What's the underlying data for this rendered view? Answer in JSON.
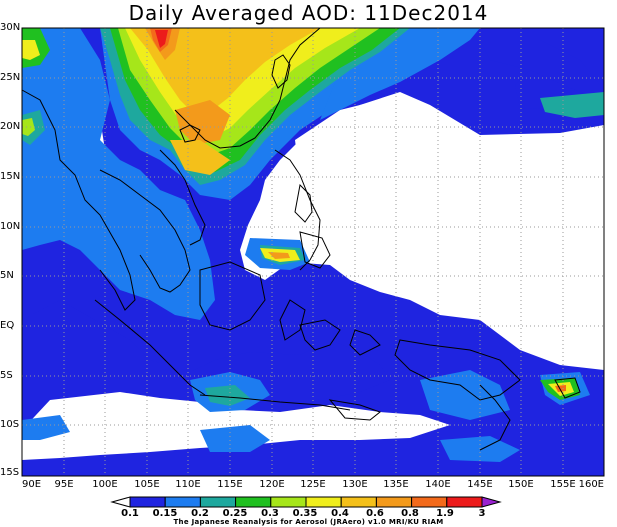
{
  "title": "Daily Averaged AOD: 11Dec2014",
  "lat_labels": [
    "30N",
    "25N",
    "20N",
    "15N",
    "10N",
    "5N",
    "EQ",
    "5S",
    "10S",
    "15S"
  ],
  "lon_labels": [
    "90E",
    "95E",
    "100E",
    "105E",
    "110E",
    "115E",
    "120E",
    "125E",
    "130E",
    "135E",
    "140E",
    "145E",
    "150E",
    "155E",
    "160E"
  ],
  "extent": {
    "lon": [
      90,
      160
    ],
    "lat": [
      -15,
      30
    ]
  },
  "grid": true,
  "colorbar": {
    "labels": [
      "0.1",
      "0.15",
      "0.2",
      "0.25",
      "0.3",
      "0.35",
      "0.4",
      "0.6",
      "0.8",
      "1.9",
      "3"
    ],
    "colors": [
      "#ffffff",
      "#1f24e0",
      "#1d7cf0",
      "#1ea89e",
      "#20c020",
      "#a6e61a",
      "#f0ee1c",
      "#f4c01a",
      "#f39a1b",
      "#f36a1b",
      "#ec1b1b",
      "#9a22d0"
    ]
  },
  "footer": "The Japanese Reanalysis for Aerosol (JRAero) v1.0 MRI/KU RIAM"
}
